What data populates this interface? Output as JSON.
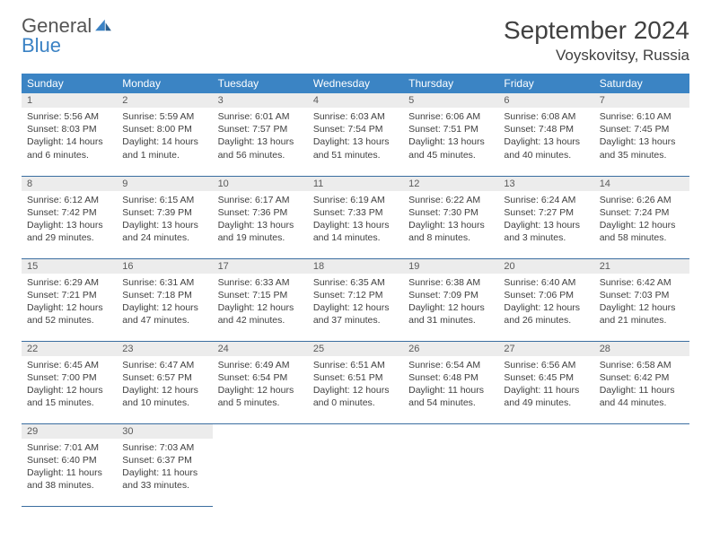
{
  "brand": {
    "word1": "General",
    "word2": "Blue"
  },
  "title": "September 2024",
  "location": "Voyskovitsy, Russia",
  "colors": {
    "header_bg": "#3b84c4",
    "row_divider": "#3b6ea0",
    "daynum_bg": "#ececec"
  },
  "daysOfWeek": [
    "Sunday",
    "Monday",
    "Tuesday",
    "Wednesday",
    "Thursday",
    "Friday",
    "Saturday"
  ],
  "firstDayOffset": 0,
  "days": [
    {
      "n": 1,
      "sunrise": "5:56 AM",
      "sunset": "8:03 PM",
      "daylight": "14 hours and 6 minutes."
    },
    {
      "n": 2,
      "sunrise": "5:59 AM",
      "sunset": "8:00 PM",
      "daylight": "14 hours and 1 minute."
    },
    {
      "n": 3,
      "sunrise": "6:01 AM",
      "sunset": "7:57 PM",
      "daylight": "13 hours and 56 minutes."
    },
    {
      "n": 4,
      "sunrise": "6:03 AM",
      "sunset": "7:54 PM",
      "daylight": "13 hours and 51 minutes."
    },
    {
      "n": 5,
      "sunrise": "6:06 AM",
      "sunset": "7:51 PM",
      "daylight": "13 hours and 45 minutes."
    },
    {
      "n": 6,
      "sunrise": "6:08 AM",
      "sunset": "7:48 PM",
      "daylight": "13 hours and 40 minutes."
    },
    {
      "n": 7,
      "sunrise": "6:10 AM",
      "sunset": "7:45 PM",
      "daylight": "13 hours and 35 minutes."
    },
    {
      "n": 8,
      "sunrise": "6:12 AM",
      "sunset": "7:42 PM",
      "daylight": "13 hours and 29 minutes."
    },
    {
      "n": 9,
      "sunrise": "6:15 AM",
      "sunset": "7:39 PM",
      "daylight": "13 hours and 24 minutes."
    },
    {
      "n": 10,
      "sunrise": "6:17 AM",
      "sunset": "7:36 PM",
      "daylight": "13 hours and 19 minutes."
    },
    {
      "n": 11,
      "sunrise": "6:19 AM",
      "sunset": "7:33 PM",
      "daylight": "13 hours and 14 minutes."
    },
    {
      "n": 12,
      "sunrise": "6:22 AM",
      "sunset": "7:30 PM",
      "daylight": "13 hours and 8 minutes."
    },
    {
      "n": 13,
      "sunrise": "6:24 AM",
      "sunset": "7:27 PM",
      "daylight": "13 hours and 3 minutes."
    },
    {
      "n": 14,
      "sunrise": "6:26 AM",
      "sunset": "7:24 PM",
      "daylight": "12 hours and 58 minutes."
    },
    {
      "n": 15,
      "sunrise": "6:29 AM",
      "sunset": "7:21 PM",
      "daylight": "12 hours and 52 minutes."
    },
    {
      "n": 16,
      "sunrise": "6:31 AM",
      "sunset": "7:18 PM",
      "daylight": "12 hours and 47 minutes."
    },
    {
      "n": 17,
      "sunrise": "6:33 AM",
      "sunset": "7:15 PM",
      "daylight": "12 hours and 42 minutes."
    },
    {
      "n": 18,
      "sunrise": "6:35 AM",
      "sunset": "7:12 PM",
      "daylight": "12 hours and 37 minutes."
    },
    {
      "n": 19,
      "sunrise": "6:38 AM",
      "sunset": "7:09 PM",
      "daylight": "12 hours and 31 minutes."
    },
    {
      "n": 20,
      "sunrise": "6:40 AM",
      "sunset": "7:06 PM",
      "daylight": "12 hours and 26 minutes."
    },
    {
      "n": 21,
      "sunrise": "6:42 AM",
      "sunset": "7:03 PM",
      "daylight": "12 hours and 21 minutes."
    },
    {
      "n": 22,
      "sunrise": "6:45 AM",
      "sunset": "7:00 PM",
      "daylight": "12 hours and 15 minutes."
    },
    {
      "n": 23,
      "sunrise": "6:47 AM",
      "sunset": "6:57 PM",
      "daylight": "12 hours and 10 minutes."
    },
    {
      "n": 24,
      "sunrise": "6:49 AM",
      "sunset": "6:54 PM",
      "daylight": "12 hours and 5 minutes."
    },
    {
      "n": 25,
      "sunrise": "6:51 AM",
      "sunset": "6:51 PM",
      "daylight": "12 hours and 0 minutes."
    },
    {
      "n": 26,
      "sunrise": "6:54 AM",
      "sunset": "6:48 PM",
      "daylight": "11 hours and 54 minutes."
    },
    {
      "n": 27,
      "sunrise": "6:56 AM",
      "sunset": "6:45 PM",
      "daylight": "11 hours and 49 minutes."
    },
    {
      "n": 28,
      "sunrise": "6:58 AM",
      "sunset": "6:42 PM",
      "daylight": "11 hours and 44 minutes."
    },
    {
      "n": 29,
      "sunrise": "7:01 AM",
      "sunset": "6:40 PM",
      "daylight": "11 hours and 38 minutes."
    },
    {
      "n": 30,
      "sunrise": "7:03 AM",
      "sunset": "6:37 PM",
      "daylight": "11 hours and 33 minutes."
    }
  ],
  "labels": {
    "sunrise": "Sunrise:",
    "sunset": "Sunset:",
    "daylight": "Daylight:"
  }
}
